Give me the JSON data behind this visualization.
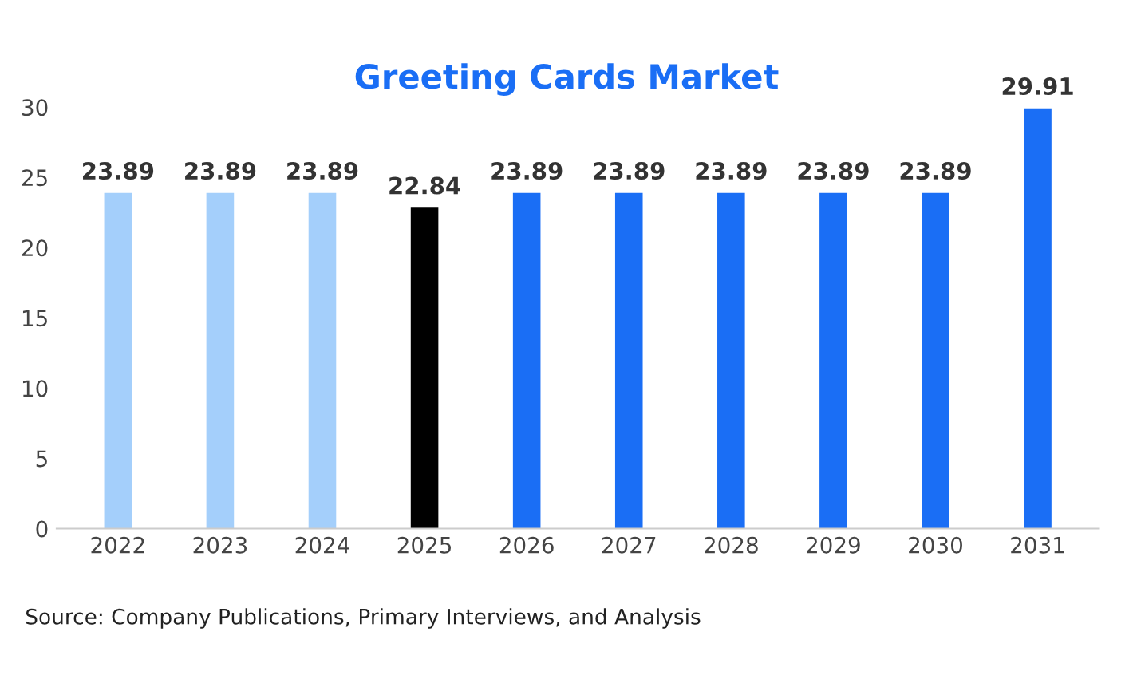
{
  "chart_data": {
    "type": "bar",
    "title": "Greeting Cards Market",
    "categories": [
      "2022",
      "2023",
      "2024",
      "2025",
      "2026",
      "2027",
      "2028",
      "2029",
      "2030",
      "2031"
    ],
    "values": [
      23.89,
      23.89,
      23.89,
      22.84,
      23.89,
      23.89,
      23.89,
      23.89,
      23.89,
      29.91
    ],
    "colors": [
      "#a4cffb",
      "#a4cffb",
      "#a4cffb",
      "#000000",
      "#1a6ef5",
      "#1a6ef5",
      "#1a6ef5",
      "#1a6ef5",
      "#1a6ef5",
      "#1a6ef5"
    ],
    "ylim": [
      0,
      30
    ],
    "yticks": [
      0,
      5,
      10,
      15,
      20,
      25,
      30
    ],
    "grid": false,
    "data_labels": true,
    "annotations": [
      "Source: Company Publications, Primary Interviews, and Analysis"
    ]
  }
}
